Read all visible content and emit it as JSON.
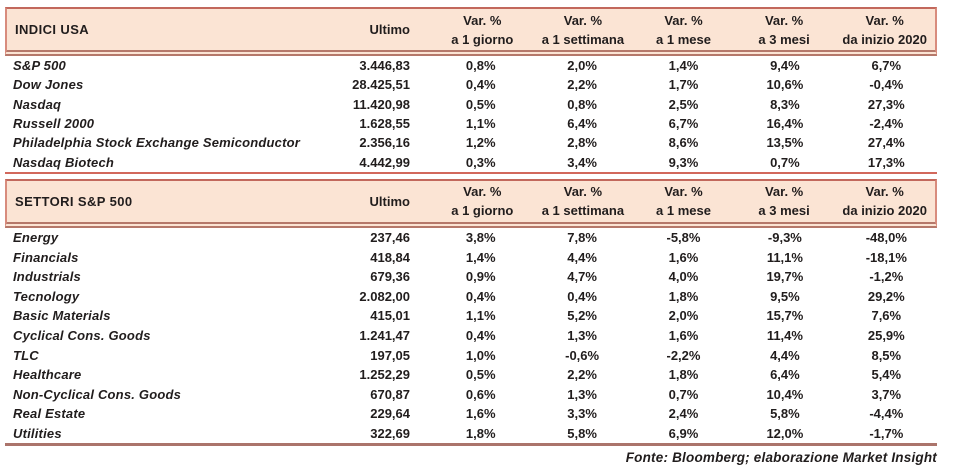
{
  "colors": {
    "header_bg": "#fbe4d4",
    "border_red": "#d2685c",
    "border_brown": "#b5786a",
    "text": "#211d1d"
  },
  "tables": [
    {
      "id": "indici-usa",
      "title": "INDICI USA",
      "ultimo_label": "Ultimo",
      "var_headers": [
        {
          "line1": "Var. %",
          "line2": "a 1 giorno"
        },
        {
          "line1": "Var. %",
          "line2": "a 1 settimana"
        },
        {
          "line1": "Var. %",
          "line2": "a 1 mese"
        },
        {
          "line1": "Var. %",
          "line2": "a 3 mesi"
        },
        {
          "line1": "Var. %",
          "line2": "da inizio 2020"
        }
      ],
      "rows": [
        {
          "name": "S&P 500",
          "ultimo": "3.446,83",
          "vars": [
            "0,8%",
            "2,0%",
            "1,4%",
            "9,4%",
            "6,7%"
          ]
        },
        {
          "name": "Dow Jones",
          "ultimo": "28.425,51",
          "vars": [
            "0,4%",
            "2,2%",
            "1,7%",
            "10,6%",
            "-0,4%"
          ]
        },
        {
          "name": "Nasdaq",
          "ultimo": "11.420,98",
          "vars": [
            "0,5%",
            "0,8%",
            "2,5%",
            "8,3%",
            "27,3%"
          ]
        },
        {
          "name": "Russell 2000",
          "ultimo": "1.628,55",
          "vars": [
            "1,1%",
            "6,4%",
            "6,7%",
            "16,4%",
            "-2,4%"
          ]
        },
        {
          "name": "Philadelphia Stock Exchange Semiconductor",
          "ultimo": "2.356,16",
          "vars": [
            "1,2%",
            "2,8%",
            "8,6%",
            "13,5%",
            "27,4%"
          ]
        },
        {
          "name": "Nasdaq Biotech",
          "ultimo": "4.442,99",
          "vars": [
            "0,3%",
            "3,4%",
            "9,3%",
            "0,7%",
            "17,3%"
          ]
        }
      ]
    },
    {
      "id": "settori-sp500",
      "title": "SETTORI S&P 500",
      "ultimo_label": "Ultimo",
      "var_headers": [
        {
          "line1": "Var. %",
          "line2": "a 1 giorno"
        },
        {
          "line1": "Var. %",
          "line2": "a 1 settimana"
        },
        {
          "line1": "Var. %",
          "line2": "a 1 mese"
        },
        {
          "line1": "Var. %",
          "line2": "a 3 mesi"
        },
        {
          "line1": "Var. %",
          "line2": "da inizio 2020"
        }
      ],
      "rows": [
        {
          "name": "Energy",
          "ultimo": "237,46",
          "vars": [
            "3,8%",
            "7,8%",
            "-5,8%",
            "-9,3%",
            "-48,0%"
          ]
        },
        {
          "name": "Financials",
          "ultimo": "418,84",
          "vars": [
            "1,4%",
            "4,4%",
            "1,6%",
            "11,1%",
            "-18,1%"
          ]
        },
        {
          "name": "Industrials",
          "ultimo": "679,36",
          "vars": [
            "0,9%",
            "4,7%",
            "4,0%",
            "19,7%",
            "-1,2%"
          ]
        },
        {
          "name": "Tecnology",
          "ultimo": "2.082,00",
          "vars": [
            "0,4%",
            "0,4%",
            "1,8%",
            "9,5%",
            "29,2%"
          ]
        },
        {
          "name": "Basic Materials",
          "ultimo": "415,01",
          "vars": [
            "1,1%",
            "5,2%",
            "2,0%",
            "15,7%",
            "7,6%"
          ]
        },
        {
          "name": "Cyclical Cons. Goods",
          "ultimo": "1.241,47",
          "vars": [
            "0,4%",
            "1,3%",
            "1,6%",
            "11,4%",
            "25,9%"
          ]
        },
        {
          "name": "TLC",
          "ultimo": "197,05",
          "vars": [
            "1,0%",
            "-0,6%",
            "-2,2%",
            "4,4%",
            "8,5%"
          ]
        },
        {
          "name": "Healthcare",
          "ultimo": "1.252,29",
          "vars": [
            "0,5%",
            "2,2%",
            "1,8%",
            "6,4%",
            "5,4%"
          ]
        },
        {
          "name": "Non-Cyclical Cons. Goods",
          "ultimo": "670,87",
          "vars": [
            "0,6%",
            "1,3%",
            "0,7%",
            "10,4%",
            "3,7%"
          ]
        },
        {
          "name": "Real Estate",
          "ultimo": "229,64",
          "vars": [
            "1,6%",
            "3,3%",
            "2,4%",
            "5,8%",
            "-4,4%"
          ]
        },
        {
          "name": "Utilities",
          "ultimo": "322,69",
          "vars": [
            "1,8%",
            "5,8%",
            "6,9%",
            "12,0%",
            "-1,7%"
          ]
        }
      ]
    }
  ],
  "footer": {
    "text": "Fonte: Bloomberg; elaborazione Market Insight"
  }
}
